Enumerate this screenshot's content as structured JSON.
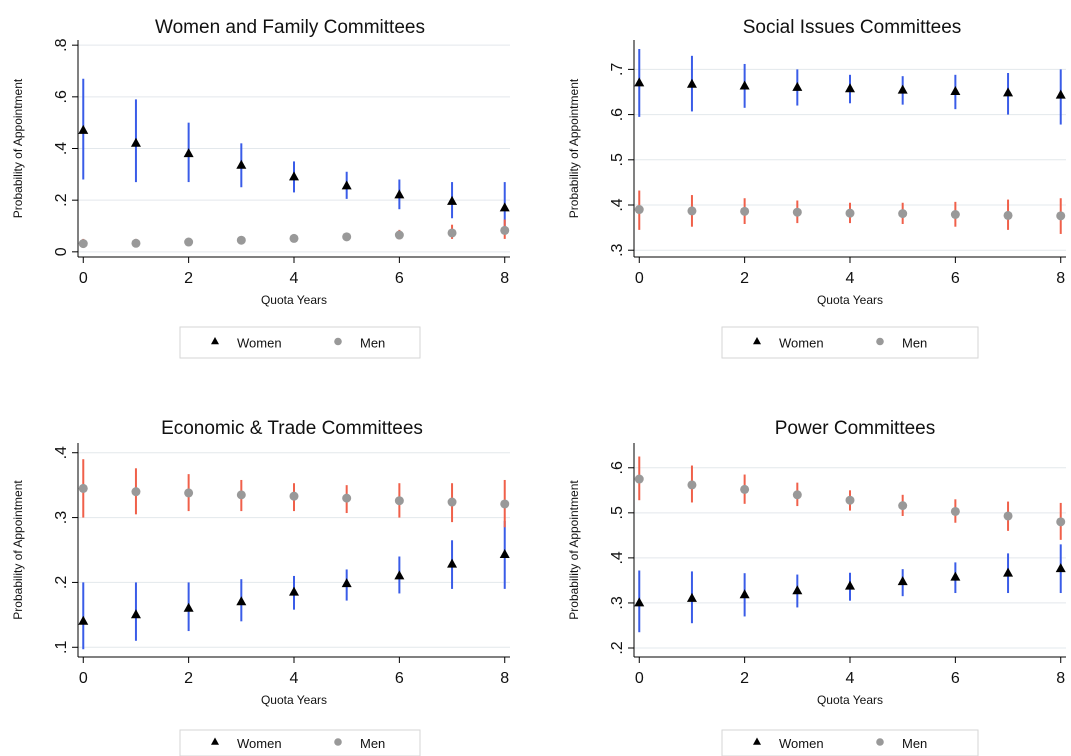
{
  "colors": {
    "women_marker": "#000000",
    "men_marker": "#999999",
    "women_ci": "#3a5ce8",
    "men_ci": "#f0604a",
    "grid": "#e3e8ec",
    "axis": "#000000"
  },
  "chart_data": [
    {
      "type": "scatter",
      "title": "Women and Family Committees",
      "xlabel": "Quota Years",
      "ylabel": "Probability of Appointment",
      "xlim": [
        -0.1,
        8.1
      ],
      "ylim": [
        -0.02,
        0.82
      ],
      "xticks": [
        0,
        2,
        4,
        6,
        8
      ],
      "xtick_labels": [
        "0",
        "2",
        "4",
        "6",
        "8"
      ],
      "yticks": [
        0,
        0.2,
        0.4,
        0.6,
        0.8
      ],
      "ytick_labels": [
        "0",
        ".2",
        ".4",
        ".6",
        ".8"
      ],
      "grid": true,
      "legend": [
        "Women",
        "Men"
      ],
      "series": [
        {
          "name": "Women",
          "x": [
            0,
            1,
            2,
            3,
            4,
            5,
            6,
            7,
            8
          ],
          "y": [
            0.47,
            0.42,
            0.38,
            0.335,
            0.29,
            0.255,
            0.22,
            0.195,
            0.17
          ],
          "lower": [
            0.28,
            0.27,
            0.27,
            0.25,
            0.23,
            0.205,
            0.165,
            0.13,
            0.09
          ],
          "upper": [
            0.67,
            0.59,
            0.5,
            0.42,
            0.35,
            0.31,
            0.28,
            0.27,
            0.27
          ]
        },
        {
          "name": "Men",
          "x": [
            0,
            1,
            2,
            3,
            4,
            5,
            6,
            7,
            8
          ],
          "y": [
            0.032,
            0.033,
            0.038,
            0.045,
            0.052,
            0.058,
            0.065,
            0.073,
            0.083
          ],
          "lower": [
            0.015,
            0.018,
            0.025,
            0.033,
            0.04,
            0.045,
            0.048,
            0.05,
            0.05
          ],
          "upper": [
            0.05,
            0.05,
            0.052,
            0.058,
            0.064,
            0.072,
            0.085,
            0.105,
            0.125
          ]
        }
      ]
    },
    {
      "type": "scatter",
      "title": "Social Issues Committees",
      "xlabel": "Quota Years",
      "ylabel": "Probability of Appointment",
      "xlim": [
        -0.1,
        8.1
      ],
      "ylim": [
        0.285,
        0.765
      ],
      "xticks": [
        0,
        2,
        4,
        6,
        8
      ],
      "xtick_labels": [
        "0",
        "2",
        "4",
        "6",
        "8"
      ],
      "yticks": [
        0.3,
        0.4,
        0.5,
        0.6,
        0.7
      ],
      "ytick_labels": [
        ".3",
        ".4",
        ".5",
        ".6",
        ".7"
      ],
      "grid": true,
      "legend": [
        "Women",
        "Men"
      ],
      "series": [
        {
          "name": "Women",
          "x": [
            0,
            1,
            2,
            3,
            4,
            5,
            6,
            7,
            8
          ],
          "y": [
            0.67,
            0.667,
            0.663,
            0.66,
            0.657,
            0.654,
            0.651,
            0.648,
            0.643
          ],
          "lower": [
            0.595,
            0.607,
            0.615,
            0.62,
            0.625,
            0.622,
            0.612,
            0.6,
            0.578
          ],
          "upper": [
            0.745,
            0.73,
            0.712,
            0.7,
            0.688,
            0.685,
            0.688,
            0.692,
            0.7
          ]
        },
        {
          "name": "Men",
          "x": [
            0,
            1,
            2,
            3,
            4,
            5,
            6,
            7,
            8
          ],
          "y": [
            0.39,
            0.387,
            0.386,
            0.384,
            0.382,
            0.381,
            0.379,
            0.377,
            0.376
          ],
          "lower": [
            0.345,
            0.352,
            0.358,
            0.36,
            0.36,
            0.358,
            0.352,
            0.345,
            0.336
          ],
          "upper": [
            0.432,
            0.422,
            0.415,
            0.41,
            0.405,
            0.405,
            0.407,
            0.412,
            0.415
          ]
        }
      ]
    },
    {
      "type": "scatter",
      "title": "Economic & Trade Committees",
      "xlabel": "Quota Years",
      "ylabel": "Probability of Appointment",
      "xlim": [
        -0.1,
        8.1
      ],
      "ylim": [
        0.085,
        0.415
      ],
      "xticks": [
        0,
        2,
        4,
        6,
        8
      ],
      "xtick_labels": [
        "0",
        "2",
        "4",
        "6",
        "8"
      ],
      "yticks": [
        0.1,
        0.2,
        0.3,
        0.4
      ],
      "ytick_labels": [
        ".1",
        ".2",
        ".3",
        ".4"
      ],
      "grid": true,
      "legend": [
        "Women",
        "Men"
      ],
      "series": [
        {
          "name": "Women",
          "x": [
            0,
            1,
            2,
            3,
            4,
            5,
            6,
            7,
            8
          ],
          "y": [
            0.14,
            0.15,
            0.16,
            0.17,
            0.185,
            0.198,
            0.21,
            0.228,
            0.243
          ],
          "lower": [
            0.097,
            0.11,
            0.125,
            0.14,
            0.158,
            0.172,
            0.183,
            0.19,
            0.19
          ],
          "upper": [
            0.2,
            0.2,
            0.2,
            0.205,
            0.21,
            0.22,
            0.24,
            0.265,
            0.295
          ]
        },
        {
          "name": "Men",
          "x": [
            0,
            1,
            2,
            3,
            4,
            5,
            6,
            7,
            8
          ],
          "y": [
            0.345,
            0.34,
            0.338,
            0.335,
            0.333,
            0.33,
            0.326,
            0.324,
            0.321
          ],
          "lower": [
            0.3,
            0.305,
            0.31,
            0.31,
            0.31,
            0.307,
            0.3,
            0.293,
            0.285
          ],
          "upper": [
            0.39,
            0.376,
            0.367,
            0.358,
            0.353,
            0.35,
            0.353,
            0.353,
            0.358
          ]
        }
      ]
    },
    {
      "type": "scatter",
      "title": "Power Committees",
      "xlabel": "Quota Years",
      "ylabel": "Probability of Appointment",
      "xlim": [
        -0.1,
        8.1
      ],
      "ylim": [
        0.18,
        0.655
      ],
      "xticks": [
        0,
        2,
        4,
        6,
        8
      ],
      "xtick_labels": [
        "0",
        "2",
        "4",
        "6",
        "8"
      ],
      "yticks": [
        0.2,
        0.3,
        0.4,
        0.5,
        0.6
      ],
      "ytick_labels": [
        ".2",
        ".3",
        ".4",
        ".5",
        ".6"
      ],
      "grid": true,
      "legend": [
        "Women",
        "Men"
      ],
      "series": [
        {
          "name": "Women",
          "x": [
            0,
            1,
            2,
            3,
            4,
            5,
            6,
            7,
            8
          ],
          "y": [
            0.3,
            0.31,
            0.318,
            0.327,
            0.337,
            0.347,
            0.357,
            0.366,
            0.376
          ],
          "lower": [
            0.235,
            0.255,
            0.27,
            0.29,
            0.305,
            0.315,
            0.322,
            0.322,
            0.322
          ],
          "upper": [
            0.372,
            0.37,
            0.366,
            0.363,
            0.367,
            0.375,
            0.39,
            0.41,
            0.43
          ]
        },
        {
          "name": "Men",
          "x": [
            0,
            1,
            2,
            3,
            4,
            5,
            6,
            7,
            8
          ],
          "y": [
            0.575,
            0.562,
            0.552,
            0.54,
            0.528,
            0.516,
            0.503,
            0.493,
            0.48
          ],
          "lower": [
            0.528,
            0.523,
            0.52,
            0.515,
            0.505,
            0.493,
            0.478,
            0.46,
            0.44
          ],
          "upper": [
            0.625,
            0.605,
            0.585,
            0.567,
            0.55,
            0.54,
            0.53,
            0.525,
            0.522
          ]
        }
      ]
    }
  ]
}
